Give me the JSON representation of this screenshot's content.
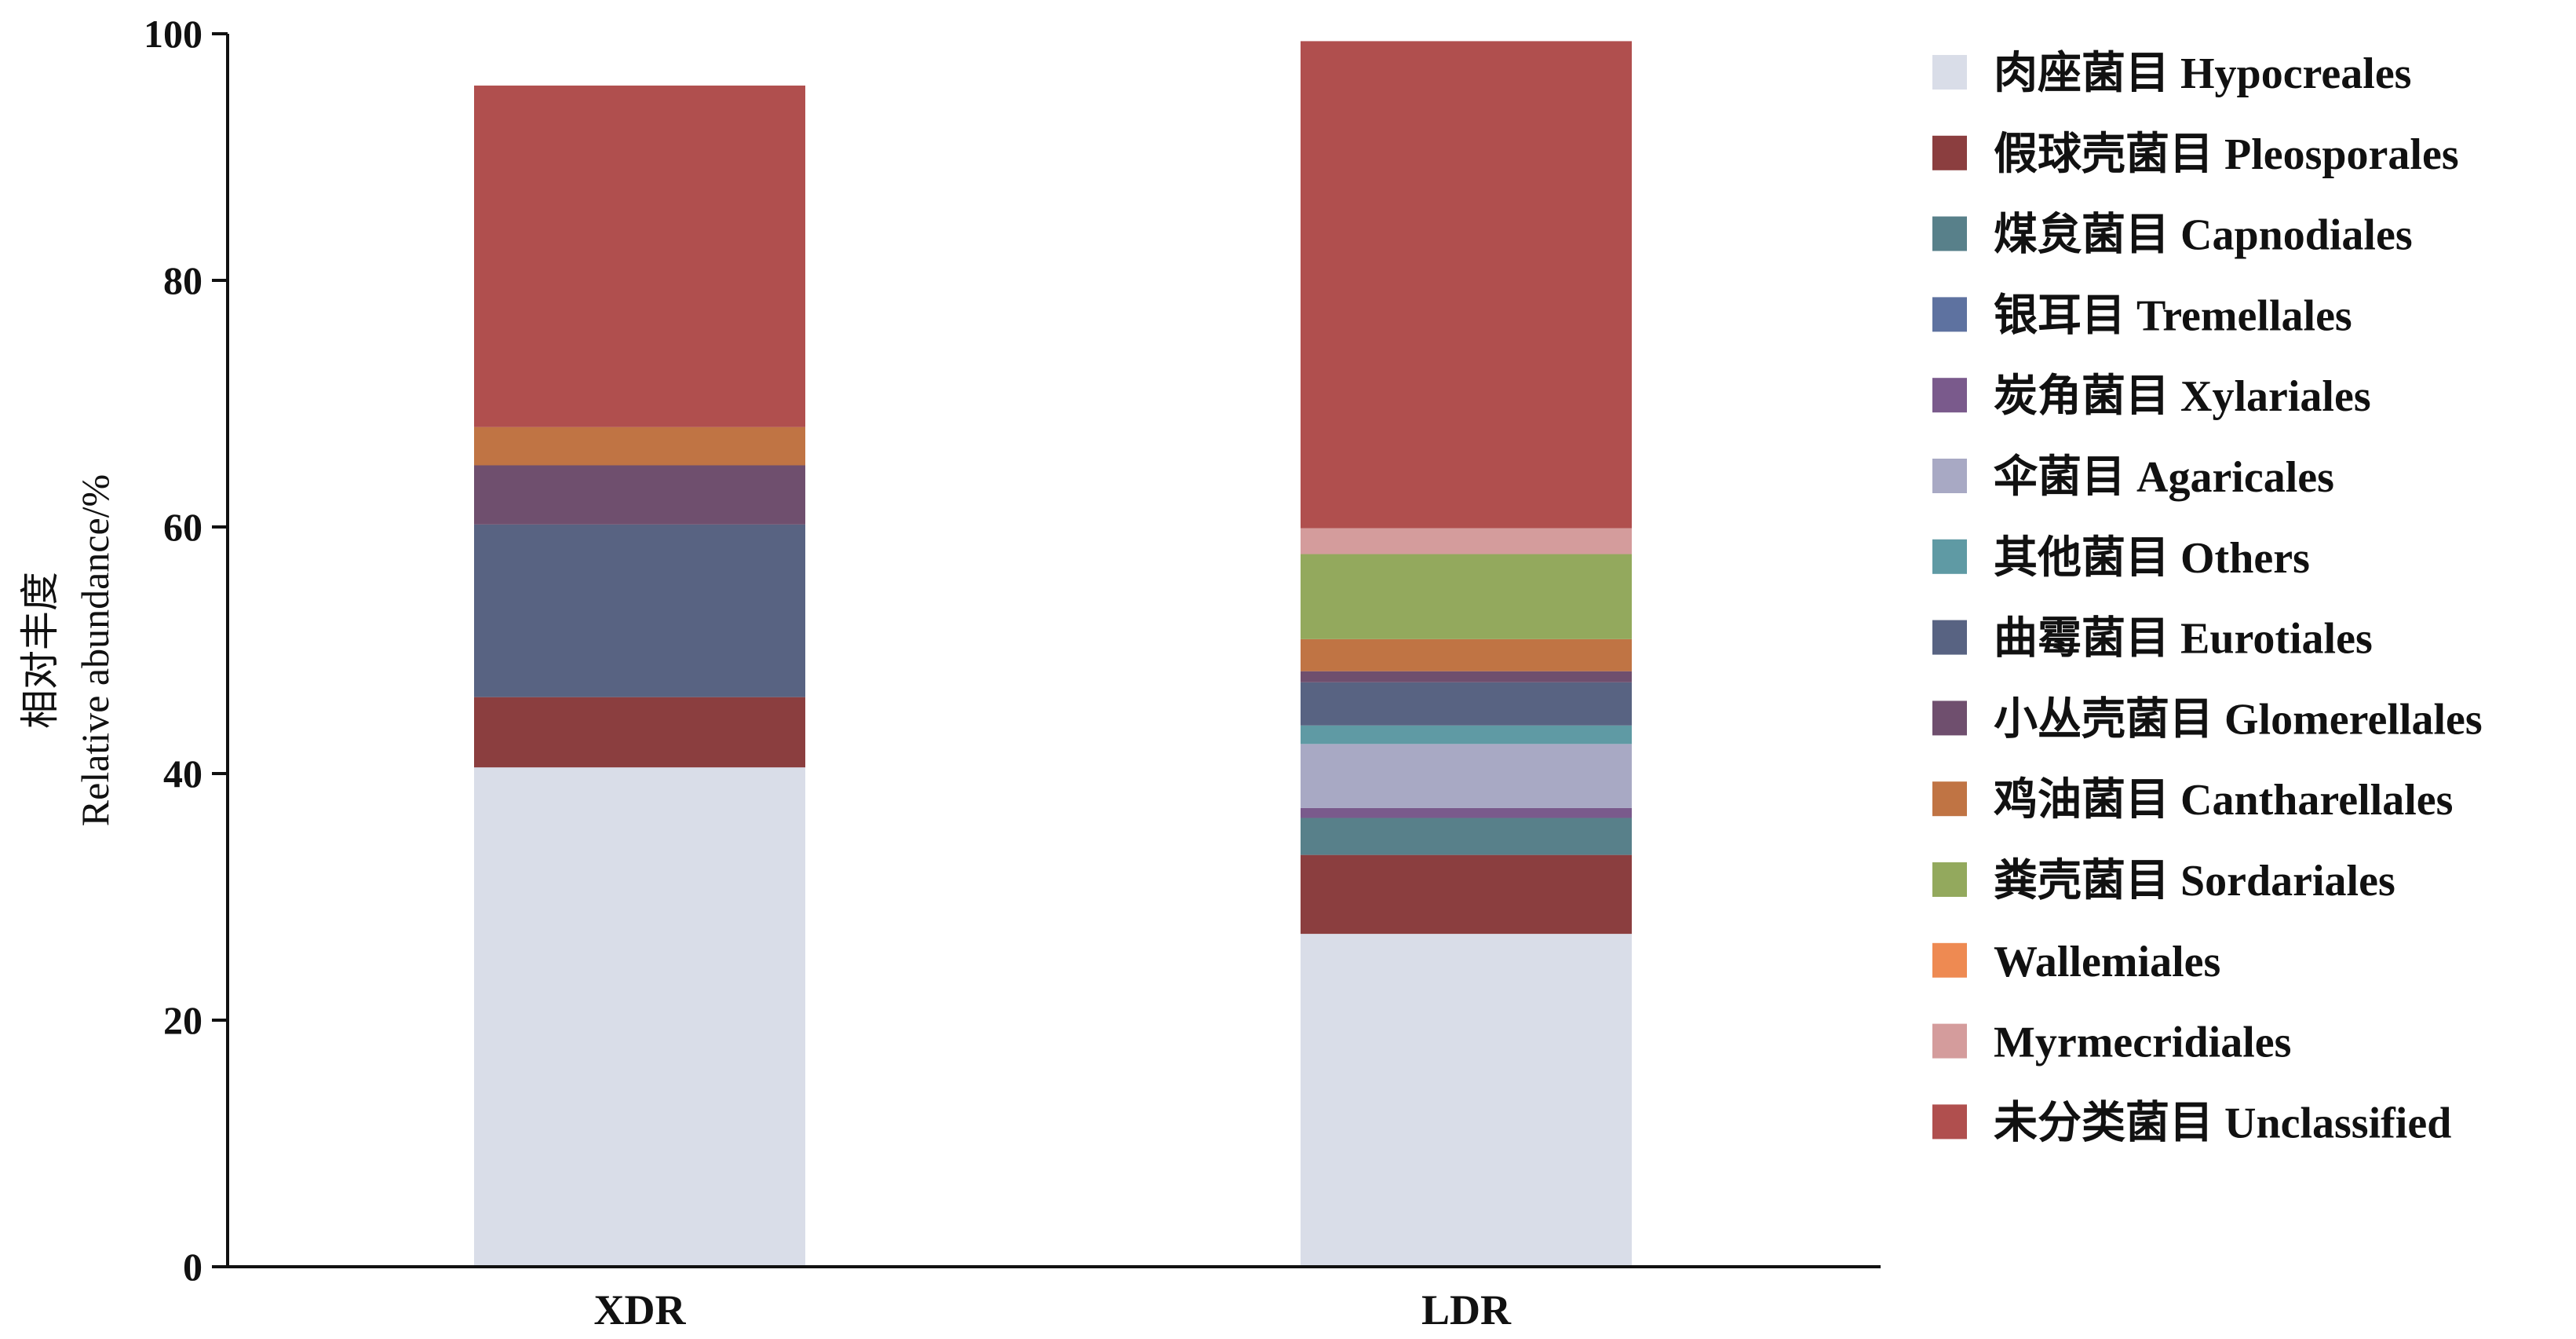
{
  "chart_data": {
    "type": "bar",
    "stacked": true,
    "categories": [
      "XDR",
      "LDR"
    ],
    "ylabel_cn": "相对丰度",
    "ylabel_en": "Relative abundance/%",
    "ylim": [
      0,
      100
    ],
    "yticks": [
      "0",
      "20",
      "40",
      "60",
      "80",
      "100"
    ],
    "grid": false,
    "legend_position": "right",
    "series": [
      {
        "name": "肉座菌目 Hypocreales",
        "color": "#d9dde8",
        "values": [
          40.5,
          27.0
        ]
      },
      {
        "name": "假球壳菌目 Pleosporales",
        "color": "#8b3e3f",
        "values": [
          5.7,
          6.4
        ]
      },
      {
        "name": "煤炱菌目 Capnodiales",
        "color": "#58808a",
        "values": [
          0.0,
          3.0
        ]
      },
      {
        "name": "银耳目 Tremellales",
        "color": "#5e72a0",
        "values": [
          0.0,
          0.0
        ]
      },
      {
        "name": "炭角菌目 Xylariales",
        "color": "#7a5a8c",
        "values": [
          0.0,
          0.8
        ]
      },
      {
        "name": "伞菌目 Agaricales",
        "color": "#a8a9c4",
        "values": [
          0.0,
          5.2
        ]
      },
      {
        "name": "其他菌目 Others",
        "color": "#5f9aa4",
        "values": [
          0.0,
          1.5
        ]
      },
      {
        "name": "曲霉菌目 Eurotiales",
        "color": "#586382",
        "values": [
          14.0,
          3.5
        ]
      },
      {
        "name": "小丛壳菌目 Glomerellales",
        "color": "#6f4f6e",
        "values": [
          4.8,
          0.9
        ]
      },
      {
        "name": "鸡油菌目 Cantharellales",
        "color": "#c07444",
        "values": [
          3.1,
          2.6
        ]
      },
      {
        "name": "粪壳菌目 Sordariales",
        "color": "#93a95d",
        "values": [
          0.0,
          6.9
        ]
      },
      {
        "name": "Wallemiales",
        "color": "#ee8a52",
        "values": [
          0.0,
          0.0
        ]
      },
      {
        "name": "Myrmecridiales",
        "color": "#d49c9c",
        "values": [
          0.0,
          2.1
        ]
      },
      {
        "name": "未分类菌目 Unclassified",
        "color": "#b04f4e",
        "values": [
          27.7,
          39.5
        ]
      }
    ]
  }
}
